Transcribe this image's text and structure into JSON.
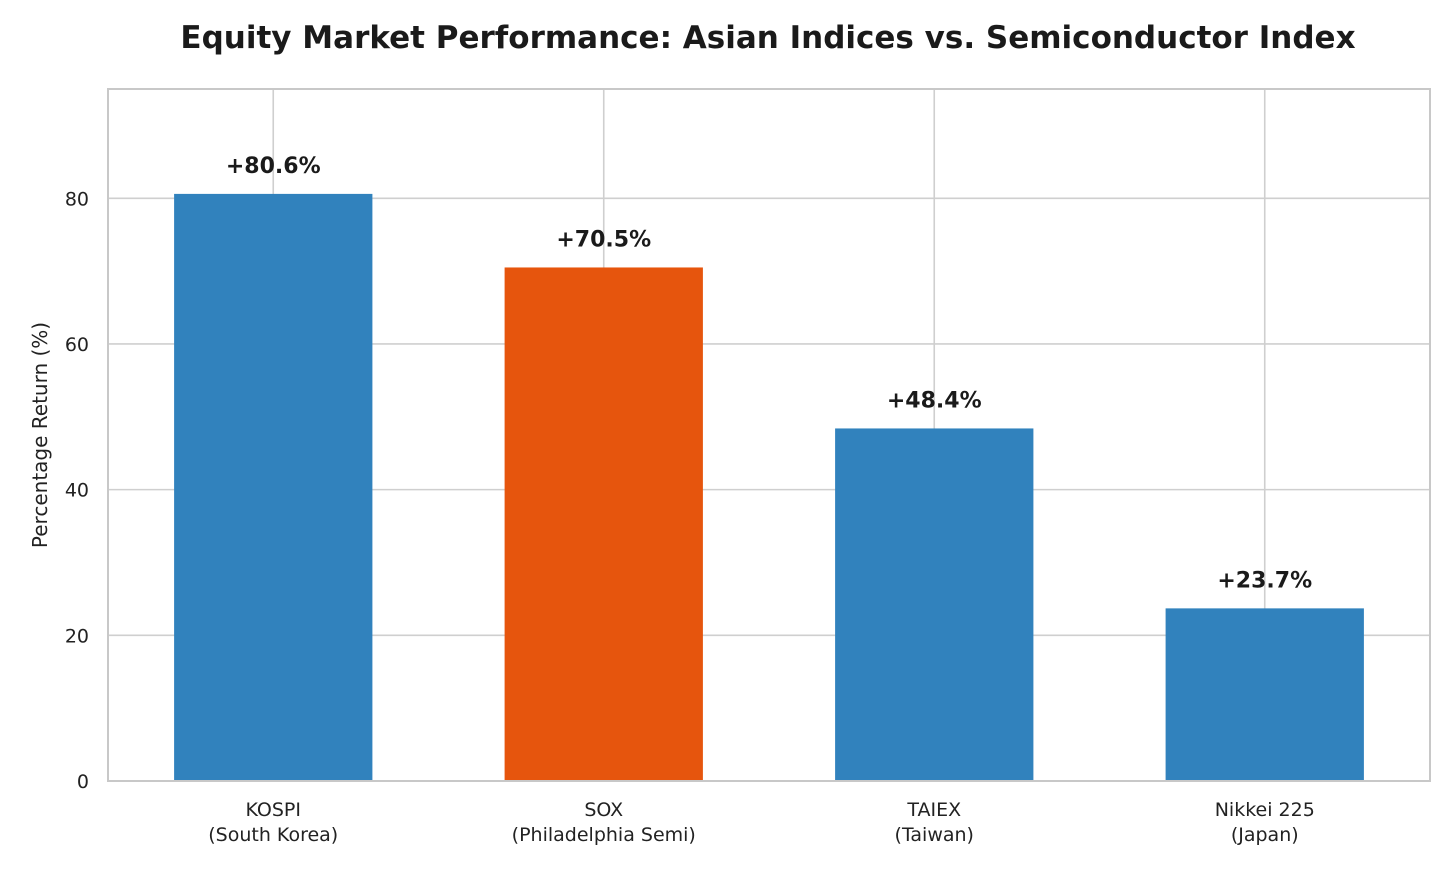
{
  "chart_data": {
    "type": "bar",
    "title": "Equity Market Performance: Asian Indices vs. Semiconductor Index",
    "xlabel": "",
    "ylabel": "Percentage Return (%)",
    "ylim": [
      0,
      95
    ],
    "yticks": [
      0,
      20,
      40,
      60,
      80
    ],
    "grid": true,
    "categories": [
      [
        "KOSPI",
        "(South Korea)"
      ],
      [
        "SOX",
        "(Philadelphia Semi)"
      ],
      [
        "TAIEX",
        "(Taiwan)"
      ],
      [
        "Nikkei 225",
        "(Japan)"
      ]
    ],
    "values": [
      80.6,
      70.5,
      48.4,
      23.7
    ],
    "data_labels": [
      "+80.6%",
      "+70.5%",
      "+48.4%",
      "+23.7%"
    ],
    "colors": [
      "#3182bd",
      "#e6550d",
      "#3182bd",
      "#3182bd"
    ]
  }
}
